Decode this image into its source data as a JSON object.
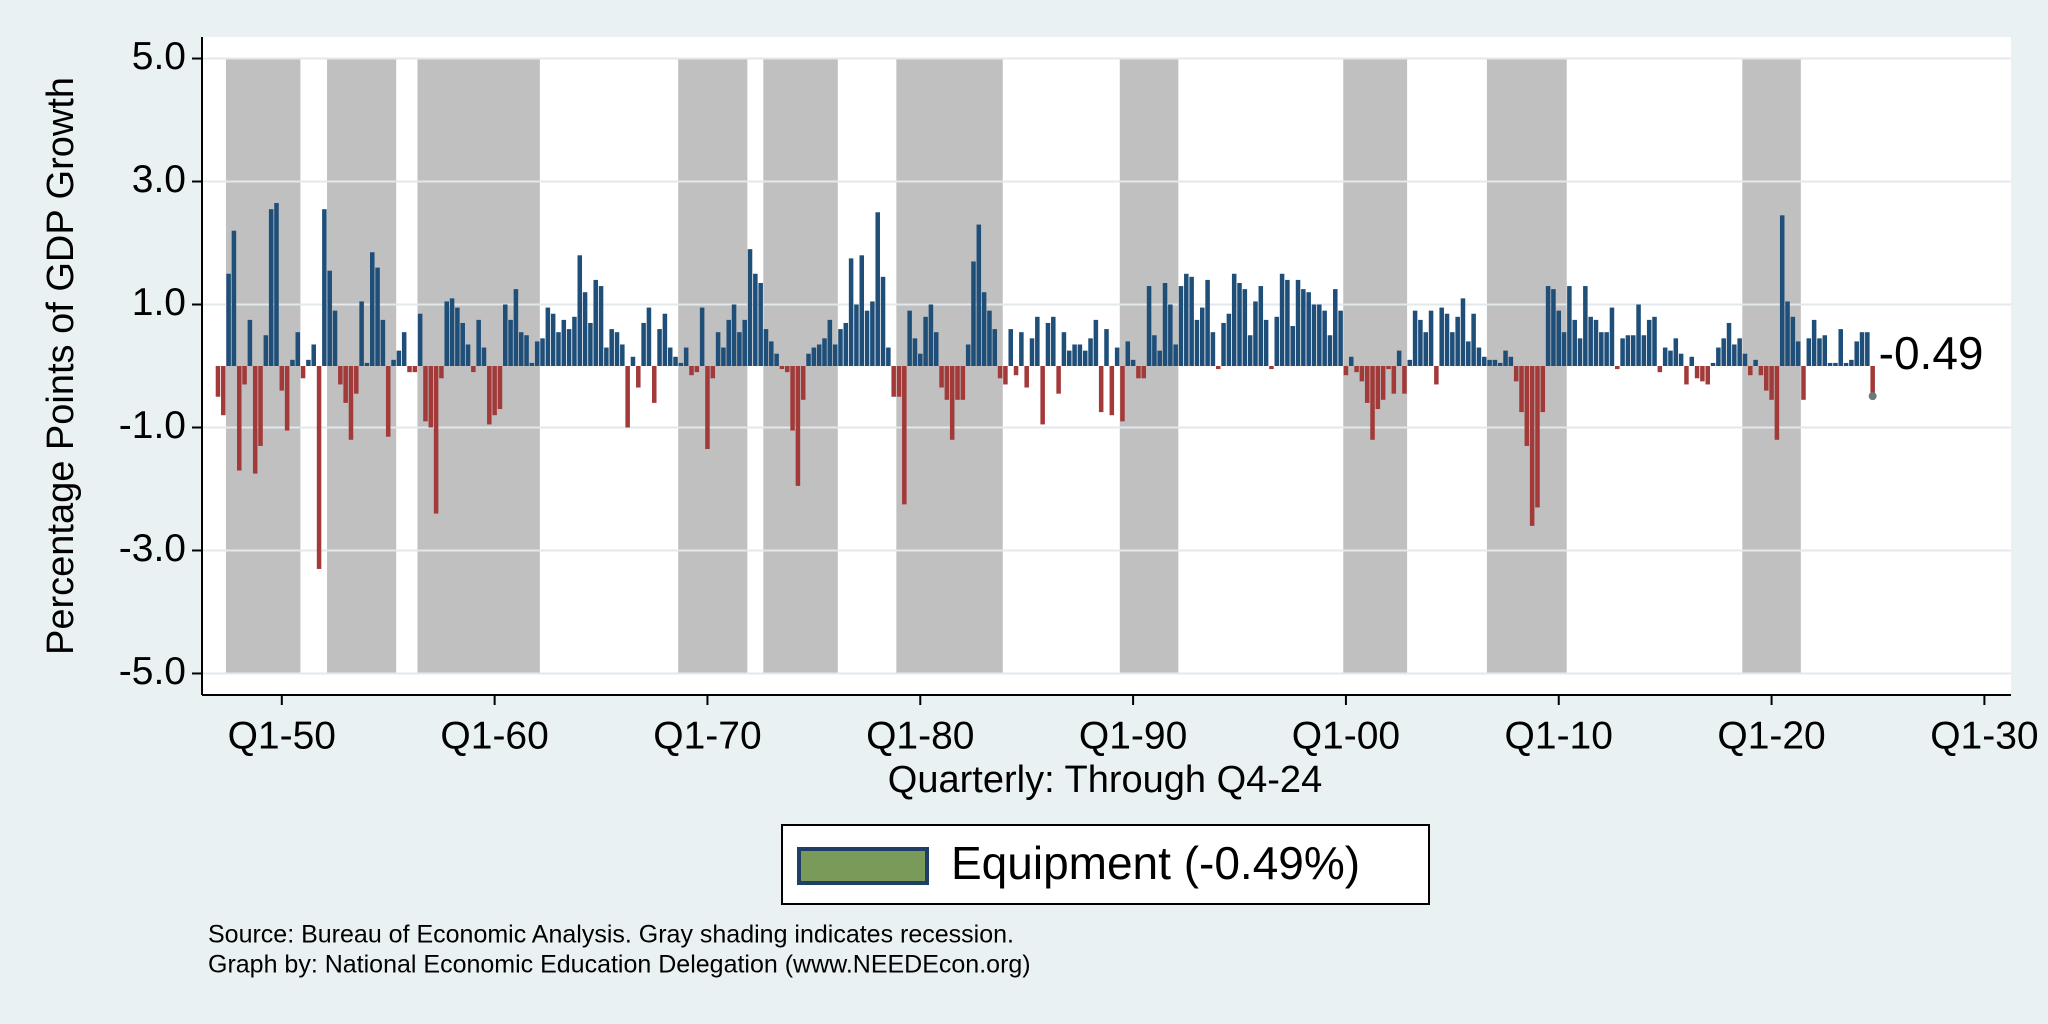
{
  "chart_data": {
    "type": "bar",
    "y_label": "Percentage Points of GDP Growth",
    "x_label": "Quarterly: Through Q4-24",
    "categories": [
      "Q1-47",
      "Q2-47",
      "Q3-47",
      "Q4-47",
      "Q1-48",
      "Q2-48",
      "Q3-48",
      "Q4-48",
      "Q1-49",
      "Q2-49",
      "Q3-49",
      "Q4-49",
      "Q1-50",
      "Q2-50",
      "Q3-50",
      "Q4-50",
      "Q1-51",
      "Q2-51",
      "Q3-51",
      "Q4-51",
      "Q1-52",
      "Q2-52",
      "Q3-52",
      "Q4-52",
      "Q1-53",
      "Q2-53",
      "Q3-53",
      "Q4-53",
      "Q1-54",
      "Q2-54",
      "Q3-54",
      "Q4-54",
      "Q1-55",
      "Q2-55",
      "Q3-55",
      "Q4-55",
      "Q1-56",
      "Q2-56",
      "Q3-56",
      "Q4-56",
      "Q1-57",
      "Q2-57",
      "Q3-57",
      "Q4-57",
      "Q1-58",
      "Q2-58",
      "Q3-58",
      "Q4-58",
      "Q1-59",
      "Q2-59",
      "Q3-59",
      "Q4-59",
      "Q1-60",
      "Q2-60",
      "Q3-60",
      "Q4-60",
      "Q1-61",
      "Q2-61",
      "Q3-61",
      "Q4-61",
      "Q1-62",
      "Q2-62",
      "Q3-62",
      "Q4-62",
      "Q1-63",
      "Q2-63",
      "Q3-63",
      "Q4-63",
      "Q1-64",
      "Q2-64",
      "Q3-64",
      "Q4-64",
      "Q1-65",
      "Q2-65",
      "Q3-65",
      "Q4-65",
      "Q1-66",
      "Q2-66",
      "Q3-66",
      "Q4-66",
      "Q1-67",
      "Q2-67",
      "Q3-67",
      "Q4-67",
      "Q1-68",
      "Q2-68",
      "Q3-68",
      "Q4-68",
      "Q1-69",
      "Q2-69",
      "Q3-69",
      "Q4-69",
      "Q1-70",
      "Q2-70",
      "Q3-70",
      "Q4-70",
      "Q1-71",
      "Q2-71",
      "Q3-71",
      "Q4-71",
      "Q1-72",
      "Q2-72",
      "Q3-72",
      "Q4-72",
      "Q1-73",
      "Q2-73",
      "Q3-73",
      "Q4-73",
      "Q1-74",
      "Q2-74",
      "Q3-74",
      "Q4-74",
      "Q1-75",
      "Q2-75",
      "Q3-75",
      "Q4-75",
      "Q1-76",
      "Q2-76",
      "Q3-76",
      "Q4-76",
      "Q1-77",
      "Q2-77",
      "Q3-77",
      "Q4-77",
      "Q1-78",
      "Q2-78",
      "Q3-78",
      "Q4-78",
      "Q1-79",
      "Q2-79",
      "Q3-79",
      "Q4-79",
      "Q1-80",
      "Q2-80",
      "Q3-80",
      "Q4-80",
      "Q1-81",
      "Q2-81",
      "Q3-81",
      "Q4-81",
      "Q1-82",
      "Q2-82",
      "Q3-82",
      "Q4-82",
      "Q1-83",
      "Q2-83",
      "Q3-83",
      "Q4-83",
      "Q1-84",
      "Q2-84",
      "Q3-84",
      "Q4-84",
      "Q1-85",
      "Q2-85",
      "Q3-85",
      "Q4-85",
      "Q1-86",
      "Q2-86",
      "Q3-86",
      "Q4-86",
      "Q1-87",
      "Q2-87",
      "Q3-87",
      "Q4-87",
      "Q1-88",
      "Q2-88",
      "Q3-88",
      "Q4-88",
      "Q1-89",
      "Q2-89",
      "Q3-89",
      "Q4-89",
      "Q1-90",
      "Q2-90",
      "Q3-90",
      "Q4-90",
      "Q1-91",
      "Q2-91",
      "Q3-91",
      "Q4-91",
      "Q1-92",
      "Q2-92",
      "Q3-92",
      "Q4-92",
      "Q1-93",
      "Q2-93",
      "Q3-93",
      "Q4-93",
      "Q1-94",
      "Q2-94",
      "Q3-94",
      "Q4-94",
      "Q1-95",
      "Q2-95",
      "Q3-95",
      "Q4-95",
      "Q1-96",
      "Q2-96",
      "Q3-96",
      "Q4-96",
      "Q1-97",
      "Q2-97",
      "Q3-97",
      "Q4-97",
      "Q1-98",
      "Q2-98",
      "Q3-98",
      "Q4-98",
      "Q1-99",
      "Q2-99",
      "Q3-99",
      "Q4-99",
      "Q1-00",
      "Q2-00",
      "Q3-00",
      "Q4-00",
      "Q1-01",
      "Q2-01",
      "Q3-01",
      "Q4-01",
      "Q1-02",
      "Q2-02",
      "Q3-02",
      "Q4-02",
      "Q1-03",
      "Q2-03",
      "Q3-03",
      "Q4-03",
      "Q1-04",
      "Q2-04",
      "Q3-04",
      "Q4-04",
      "Q1-05",
      "Q2-05",
      "Q3-05",
      "Q4-05",
      "Q1-06",
      "Q2-06",
      "Q3-06",
      "Q4-06",
      "Q1-07",
      "Q2-07",
      "Q3-07",
      "Q4-07",
      "Q1-08",
      "Q2-08",
      "Q3-08",
      "Q4-08",
      "Q1-09",
      "Q2-09",
      "Q3-09",
      "Q4-09",
      "Q1-10",
      "Q2-10",
      "Q3-10",
      "Q4-10",
      "Q1-11",
      "Q2-11",
      "Q3-11",
      "Q4-11",
      "Q1-12",
      "Q2-12",
      "Q3-12",
      "Q4-12",
      "Q1-13",
      "Q2-13",
      "Q3-13",
      "Q4-13",
      "Q1-14",
      "Q2-14",
      "Q3-14",
      "Q4-14",
      "Q1-15",
      "Q2-15",
      "Q3-15",
      "Q4-15",
      "Q1-16",
      "Q2-16",
      "Q3-16",
      "Q4-16",
      "Q1-17",
      "Q2-17",
      "Q3-17",
      "Q4-17",
      "Q1-18",
      "Q2-18",
      "Q3-18",
      "Q4-18",
      "Q1-19",
      "Q2-19",
      "Q3-19",
      "Q4-19",
      "Q1-20",
      "Q2-20",
      "Q3-20",
      "Q4-20",
      "Q1-21",
      "Q2-21",
      "Q3-21",
      "Q4-21",
      "Q1-22",
      "Q2-22",
      "Q3-22",
      "Q4-22",
      "Q1-23",
      "Q2-23",
      "Q3-23",
      "Q4-23",
      "Q1-24",
      "Q2-24",
      "Q3-24",
      "Q4-24"
    ],
    "values": [
      -0.5,
      -0.8,
      1.5,
      2.2,
      -1.7,
      -0.3,
      0.75,
      -1.75,
      -1.3,
      0.5,
      2.55,
      2.65,
      -0.4,
      -1.05,
      0.1,
      0.55,
      -0.2,
      0.1,
      0.35,
      -3.3,
      2.55,
      1.55,
      0.9,
      -0.3,
      -0.6,
      -1.2,
      -0.45,
      1.05,
      0.05,
      1.85,
      1.6,
      0.75,
      -1.15,
      0.1,
      0.25,
      0.55,
      -0.1,
      -0.1,
      0.85,
      -0.9,
      -1.0,
      -2.4,
      -0.2,
      1.05,
      1.1,
      0.95,
      0.7,
      0.35,
      -0.1,
      0.75,
      0.3,
      -0.95,
      -0.8,
      -0.7,
      1.0,
      0.75,
      1.25,
      0.55,
      0.5,
      0.05,
      0.4,
      0.45,
      0.95,
      0.85,
      0.55,
      0.75,
      0.6,
      0.8,
      1.8,
      1.2,
      0.7,
      1.4,
      1.3,
      0.3,
      0.6,
      0.55,
      0.35,
      -1.0,
      0.15,
      -0.35,
      0.7,
      0.95,
      -0.6,
      0.6,
      0.85,
      0.3,
      0.15,
      0.05,
      0.3,
      -0.15,
      -0.1,
      0.95,
      -1.35,
      -0.2,
      0.55,
      0.3,
      0.75,
      1.0,
      0.55,
      0.75,
      1.9,
      1.5,
      1.35,
      0.6,
      0.4,
      0.2,
      -0.05,
      -0.1,
      -1.05,
      -1.95,
      -0.55,
      0.2,
      0.3,
      0.35,
      0.45,
      0.75,
      0.35,
      0.6,
      0.7,
      1.75,
      1.0,
      1.8,
      0.9,
      1.05,
      2.5,
      1.45,
      0.3,
      -0.5,
      -0.5,
      -2.25,
      0.9,
      0.45,
      0.2,
      0.8,
      1.0,
      0.55,
      -0.35,
      -0.55,
      -1.2,
      -0.55,
      -0.55,
      0.35,
      1.7,
      2.3,
      1.2,
      0.9,
      0.6,
      -0.2,
      -0.3,
      0.6,
      -0.15,
      0.55,
      -0.35,
      0.45,
      0.8,
      -0.95,
      0.7,
      0.8,
      -0.45,
      0.55,
      0.25,
      0.35,
      0.35,
      0.25,
      0.45,
      0.75,
      -0.75,
      0.6,
      -0.8,
      0.3,
      -0.9,
      0.4,
      0.1,
      -0.2,
      -0.2,
      1.3,
      0.5,
      0.25,
      1.35,
      1.0,
      0.35,
      1.3,
      1.5,
      1.45,
      0.75,
      0.95,
      1.4,
      0.55,
      -0.05,
      0.7,
      0.85,
      1.5,
      1.35,
      1.25,
      0.5,
      1.05,
      1.3,
      0.75,
      -0.05,
      0.8,
      1.5,
      1.4,
      0.65,
      1.4,
      1.25,
      1.2,
      1.0,
      1.0,
      0.9,
      0.5,
      1.25,
      0.9,
      -0.15,
      0.15,
      -0.1,
      -0.25,
      -0.6,
      -1.2,
      -0.7,
      -0.55,
      -0.05,
      -0.45,
      0.25,
      -0.45,
      0.1,
      0.9,
      0.75,
      0.55,
      0.9,
      -0.3,
      0.95,
      0.85,
      0.55,
      0.8,
      1.1,
      0.4,
      0.85,
      0.3,
      0.15,
      0.1,
      0.1,
      0.05,
      0.25,
      0.15,
      -0.25,
      -0.75,
      -1.3,
      -2.6,
      -2.3,
      -0.75,
      1.3,
      1.25,
      0.9,
      0.55,
      1.3,
      0.75,
      0.45,
      1.3,
      0.8,
      0.75,
      0.55,
      0.55,
      0.95,
      -0.05,
      0.45,
      0.5,
      0.5,
      1.0,
      0.5,
      0.75,
      0.8,
      -0.1,
      0.3,
      0.25,
      0.45,
      0.2,
      -0.3,
      0.15,
      -0.2,
      -0.25,
      -0.3,
      0.05,
      0.3,
      0.45,
      0.7,
      0.35,
      0.45,
      0.2,
      -0.15,
      0.1,
      -0.15,
      -0.4,
      -0.55,
      -1.2,
      2.45,
      1.05,
      0.8,
      0.4,
      -0.55,
      0.45,
      0.75,
      0.45,
      0.5,
      0.05,
      0.05,
      0.6,
      0.05,
      0.1,
      0.4,
      0.55,
      0.55,
      -0.49
    ],
    "positive_color": "#1f4e79",
    "negative_color": "#a33a3a",
    "ylim": [
      -5.35,
      5.35
    ],
    "yticks": [
      {
        "value": -5,
        "label": "-5.0"
      },
      {
        "value": -3,
        "label": "-3.0"
      },
      {
        "value": -1,
        "label": "-1.0"
      },
      {
        "value": 1,
        "label": "1.0"
      },
      {
        "value": 3,
        "label": "3.0"
      },
      {
        "value": 5,
        "label": "5.0"
      }
    ],
    "xlim": [
      "Q2-46",
      "Q2-31"
    ],
    "xticks": [
      "Q1-50",
      "Q1-60",
      "Q1-70",
      "Q1-80",
      "Q1-90",
      "Q1-00",
      "Q1-10",
      "Q1-20",
      "Q1-30"
    ],
    "grid": true,
    "shade_color": "#c0c0c0",
    "recessions": [
      {
        "start": "Q3-47",
        "end": "Q4-50"
      },
      {
        "start": "Q2-52",
        "end": "Q2-55"
      },
      {
        "start": "Q3-56",
        "end": "Q1-62"
      },
      {
        "start": "Q4-68",
        "end": "Q4-71"
      },
      {
        "start": "Q4-72",
        "end": "Q1-76"
      },
      {
        "start": "Q1-79",
        "end": "Q4-83"
      },
      {
        "start": "Q3-89",
        "end": "Q1-92"
      },
      {
        "start": "Q1-00",
        "end": "Q4-02"
      },
      {
        "start": "Q4-06",
        "end": "Q2-10"
      },
      {
        "start": "Q4-18",
        "end": "Q2-21"
      }
    ],
    "end_label": "-0.49",
    "legend": {
      "label": "Equipment (-0.49%)",
      "color": "#7a9a5a",
      "edge_color": "#1f3f66"
    },
    "notes": [
      "Source: Bureau of Economic Analysis. Gray shading indicates recession.",
      "Graph by: National Economic Education Delegation (www.NEEDEcon.org)"
    ]
  }
}
